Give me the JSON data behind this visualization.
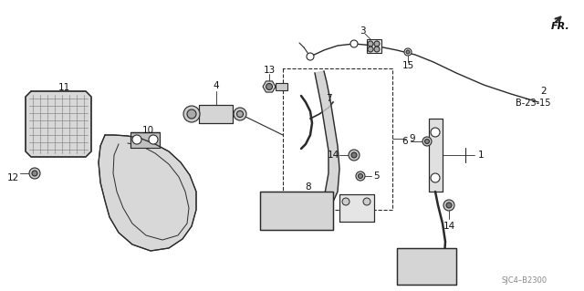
{
  "bg_color": "#ffffff",
  "diagram_code": "SJC4–B2300",
  "fr_label": "FR.",
  "ref_label": "B-23-15",
  "line_color": "#2a2a2a",
  "text_color": "#111111",
  "label_fs": 7.5,
  "small_fs": 6.5,
  "fig_w": 6.4,
  "fig_h": 3.19,
  "dpi": 100
}
